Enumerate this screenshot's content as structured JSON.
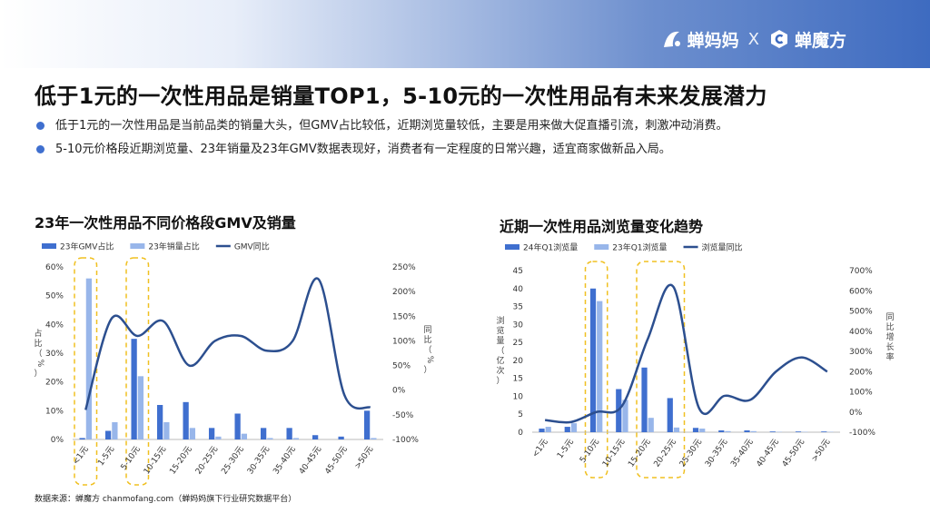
{
  "brand": {
    "left_logo": "蝉妈妈",
    "separator": "X",
    "right_logo": "蝉魔方"
  },
  "headline": "低于1元的一次性用品是销量TOP1，5-10元的一次性用品有未来发展潜力",
  "bullets": [
    "低于1元的一次性用品是当前品类的销量大头，但GMV占比较低，近期浏览量较低，主要是用来做大促直播引流，刺激冲动消费。",
    "5-10元价格段近期浏览量、23年销量及23年GMV数据表现好，消费者有一定程度的日常兴趣，适宜商家做新品入局。"
  ],
  "footer": "数据来源：蝉魔方 chanmofang.com（蝉妈妈旗下行业研究数据平台）",
  "colors": {
    "dark_bar": "#3f6fcf",
    "light_bar": "#98b6ea",
    "line": "#2c4f8f",
    "highlight_box": "#f0c020",
    "bullet": "#3f6fcf"
  },
  "chart_data": [
    {
      "type": "bar",
      "title": "23年一次性用品不同价格段GMV及销量",
      "categories": [
        "<1元",
        "1-5元",
        "5-10元",
        "10-15元",
        "15-20元",
        "20-25元",
        "25-30元",
        "30-35元",
        "35-40元",
        "40-45元",
        "45-50元",
        ">50元"
      ],
      "series": [
        {
          "name": "23年GMV占比",
          "kind": "bar",
          "axis": "left",
          "values": [
            0.5,
            3,
            35,
            12,
            13,
            4,
            9,
            4,
            4,
            1.5,
            1,
            10
          ]
        },
        {
          "name": "23年销量占比",
          "kind": "bar",
          "axis": "left",
          "values": [
            56,
            6,
            22,
            6,
            4,
            1,
            2,
            0.5,
            0.5,
            0,
            0,
            0.5
          ]
        },
        {
          "name": "GMV同比",
          "kind": "line",
          "axis": "right",
          "values": [
            -40,
            145,
            110,
            140,
            50,
            100,
            110,
            80,
            100,
            225,
            -10,
            -35
          ]
        }
      ],
      "ylabel_left": "占比（%）",
      "ylabel_right": "同比（%）",
      "ylim_left": [
        0,
        60
      ],
      "ylim_right": [
        -100,
        250
      ],
      "yticks_left": [
        "0%",
        "10%",
        "20%",
        "30%",
        "40%",
        "50%",
        "60%"
      ],
      "yticks_right": [
        "-100%",
        "-50%",
        "0%",
        "50%",
        "100%",
        "150%",
        "200%",
        "250%"
      ],
      "highlight_categories": [
        "<1元",
        "5-10元"
      ],
      "legend": "top-left",
      "grid": false
    },
    {
      "type": "bar",
      "title": "近期一次性用品浏览量变化趋势",
      "categories": [
        "<1元",
        "1-5元",
        "5-10元",
        "10-15元",
        "15-20元",
        "20-25元",
        "25-30元",
        "30-35元",
        "35-40元",
        "40-45元",
        "45-50元",
        ">50元"
      ],
      "series": [
        {
          "name": "24年Q1浏览量",
          "kind": "bar",
          "axis": "left",
          "values": [
            1,
            1.5,
            40,
            12,
            18,
            9.5,
            1.2,
            0.5,
            0.5,
            0.2,
            0.2,
            0.2
          ]
        },
        {
          "name": "23年Q1浏览量",
          "kind": "bar",
          "axis": "left",
          "values": [
            1.5,
            2.5,
            36.5,
            9,
            4,
            1.3,
            1,
            0.3,
            0.3,
            0.1,
            0.1,
            0.1
          ]
        },
        {
          "name": "浏览量同比",
          "kind": "line",
          "axis": "right",
          "values": [
            -40,
            -50,
            0,
            30,
            360,
            620,
            20,
            80,
            60,
            200,
            270,
            200
          ]
        }
      ],
      "ylabel_left": "浏览量（亿次）",
      "ylabel_right": "同比增长率",
      "ylim_left": [
        0,
        45
      ],
      "ylim_right": [
        -100,
        700
      ],
      "yticks_left": [
        "0",
        "5",
        "10",
        "15",
        "20",
        "25",
        "30",
        "35",
        "40",
        "45"
      ],
      "yticks_right": [
        "-100%",
        "0%",
        "100%",
        "200%",
        "300%",
        "400%",
        "500%",
        "600%",
        "700%"
      ],
      "highlight_categories": [
        "5-10元",
        "15-20元",
        "20-25元"
      ],
      "legend": "top-left",
      "grid": false
    }
  ]
}
